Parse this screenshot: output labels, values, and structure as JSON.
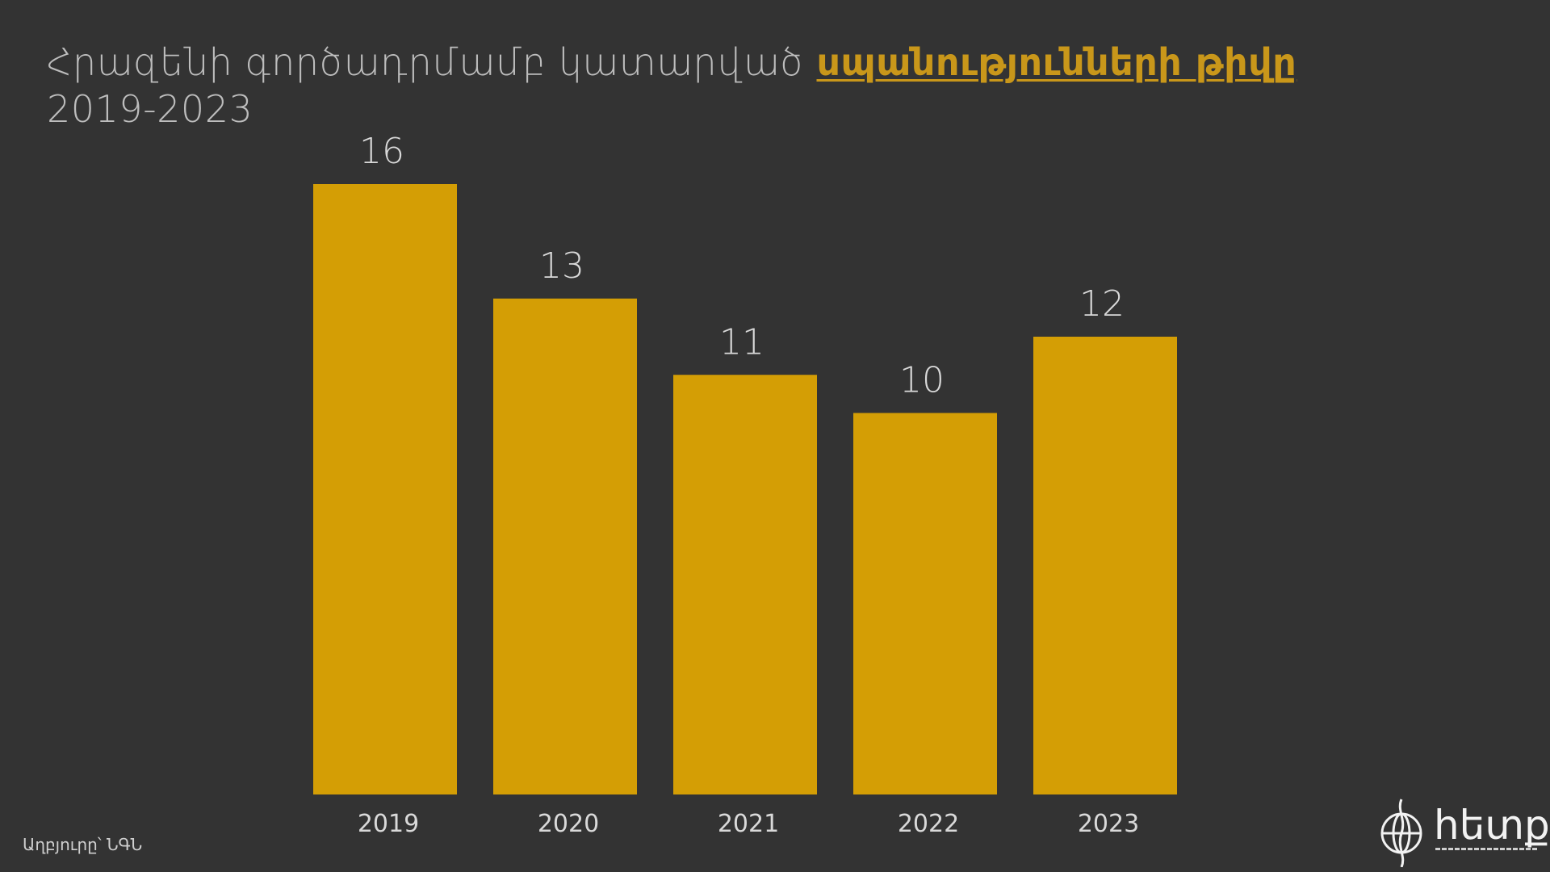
{
  "title": {
    "text_main": "Հրազենի գործադրմամբ կատարված ",
    "text_highlight": "սպանությունների թիվը",
    "subtitle": "2019-2023"
  },
  "source": "Աղբյուրը՝ ՆԳՆ",
  "logo": {
    "text": "հետք",
    "icon": "globe-icon"
  },
  "colors": {
    "background": "#333333",
    "bar": "#d49e05",
    "highlight": "#c9971a",
    "text": "#d9d9d9"
  },
  "chart_data": {
    "type": "bar",
    "title": "Հրազենի գործադրմամբ կատարված սպանությունների թիվը",
    "subtitle": "2019-2023",
    "categories": [
      "2019",
      "2020",
      "2021",
      "2022",
      "2023"
    ],
    "values": [
      16,
      13,
      11,
      10,
      12
    ],
    "data_labels": [
      "16",
      "13",
      "11",
      "10",
      "12"
    ],
    "xlabel": "",
    "ylabel": "",
    "ylim": [
      0,
      16
    ],
    "grid": false,
    "legend": "none",
    "color": "#d49e05"
  }
}
